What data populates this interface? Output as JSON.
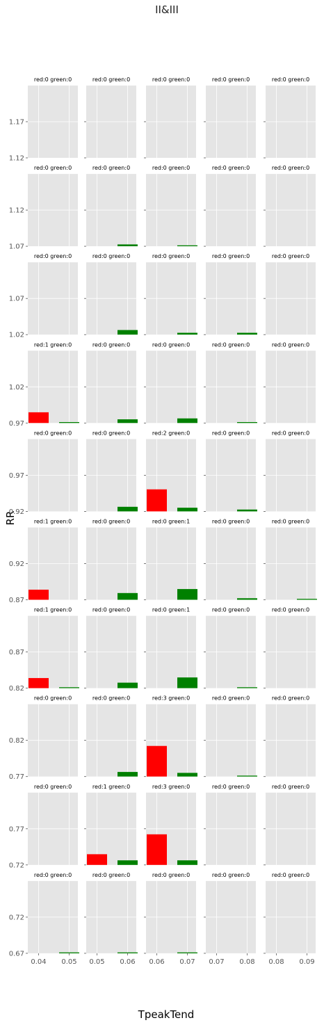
{
  "chart_data": {
    "type": "bar",
    "title": "II&III",
    "xlabel": "TpeakTend",
    "ylabel": "RR",
    "layout": {
      "rows": 10,
      "cols": 5
    },
    "colors": {
      "red": "#ff0000",
      "green": "#008000",
      "panel_bg": "#e5e5e5",
      "grid": "#ffffff"
    },
    "grid": true,
    "col_xticks": [
      [
        "0.04",
        "0.05"
      ],
      [
        "0.05",
        "0.06"
      ],
      [
        "0.06",
        "0.07"
      ],
      [
        "0.07",
        "0.08"
      ],
      [
        "0.08",
        "0.09"
      ]
    ],
    "row_yticks": [
      [
        "1.12",
        "1.17"
      ],
      [
        "1.07",
        "1.12"
      ],
      [
        "1.02",
        "1.07"
      ],
      [
        "0.97",
        "1.02"
      ],
      [
        "0.92",
        "0.97"
      ],
      [
        "0.87",
        "0.92"
      ],
      [
        "0.82",
        "0.87"
      ],
      [
        "0.77",
        "0.82"
      ],
      [
        "0.72",
        "0.77"
      ],
      [
        "0.67",
        "0.72"
      ]
    ],
    "panels": [
      [
        {
          "title": "red:0 green:0",
          "red": 0,
          "green": 0
        },
        {
          "title": "red:0 green:0",
          "red": 0,
          "green": 0
        },
        {
          "title": "red:0 green:0",
          "red": 0,
          "green": 0
        },
        {
          "title": "red:0 green:0",
          "red": 0,
          "green": 0
        },
        {
          "title": "red:0 green:0",
          "red": 0,
          "green": 0
        }
      ],
      [
        {
          "title": "red:0 green:0",
          "red": 0,
          "green": 0
        },
        {
          "title": "red:0 green:0",
          "red": 0,
          "green": 0.06
        },
        {
          "title": "red:0 green:0",
          "red": 0,
          "green": 0.03
        },
        {
          "title": "red:0 green:0",
          "red": 0,
          "green": 0
        },
        {
          "title": "red:0 green:0",
          "red": 0,
          "green": 0
        }
      ],
      [
        {
          "title": "red:0 green:0",
          "red": 0,
          "green": 0
        },
        {
          "title": "red:0 green:0",
          "red": 0,
          "green": 0.15
        },
        {
          "title": "red:0 green:0",
          "red": 0,
          "green": 0.06
        },
        {
          "title": "red:0 green:0",
          "red": 0,
          "green": 0.06
        },
        {
          "title": "red:0 green:0",
          "red": 0,
          "green": 0
        }
      ],
      [
        {
          "title": "red:1 green:0",
          "red": 0.35,
          "green": 0.03
        },
        {
          "title": "red:0 green:0",
          "red": 0,
          "green": 0.12
        },
        {
          "title": "red:0 green:0",
          "red": 0,
          "green": 0.15
        },
        {
          "title": "red:0 green:0",
          "red": 0,
          "green": 0.03
        },
        {
          "title": "red:0 green:0",
          "red": 0,
          "green": 0
        }
      ],
      [
        {
          "title": "red:0 green:0",
          "red": 0,
          "green": 0
        },
        {
          "title": "red:0 green:0",
          "red": 0,
          "green": 0.15
        },
        {
          "title": "red:2 green:0",
          "red": 0.72,
          "green": 0.12
        },
        {
          "title": "red:0 green:0",
          "red": 0,
          "green": 0.06
        },
        {
          "title": "red:0 green:0",
          "red": 0,
          "green": 0
        }
      ],
      [
        {
          "title": "red:1 green:0",
          "red": 0.33,
          "green": 0
        },
        {
          "title": "red:0 green:0",
          "red": 0,
          "green": 0.22
        },
        {
          "title": "red:0 green:1",
          "red": 0,
          "green": 0.35
        },
        {
          "title": "red:0 green:0",
          "red": 0,
          "green": 0.05
        },
        {
          "title": "red:0 green:0",
          "red": 0,
          "green": 0.03
        }
      ],
      [
        {
          "title": "red:1 green:0",
          "red": 0.33,
          "green": 0.03
        },
        {
          "title": "red:0 green:0",
          "red": 0,
          "green": 0.18
        },
        {
          "title": "red:0 green:1",
          "red": 0,
          "green": 0.35
        },
        {
          "title": "red:0 green:0",
          "red": 0,
          "green": 0.03
        },
        {
          "title": "red:0 green:0",
          "red": 0,
          "green": 0
        }
      ],
      [
        {
          "title": "red:0 green:0",
          "red": 0,
          "green": 0
        },
        {
          "title": "red:0 green:0",
          "red": 0,
          "green": 0.15
        },
        {
          "title": "red:3 green:0",
          "red": 1.0,
          "green": 0.12
        },
        {
          "title": "red:0 green:0",
          "red": 0,
          "green": 0.03
        },
        {
          "title": "red:0 green:0",
          "red": 0,
          "green": 0
        }
      ],
      [
        {
          "title": "red:0 green:0",
          "red": 0,
          "green": 0
        },
        {
          "title": "red:1 green:0",
          "red": 0.35,
          "green": 0.15
        },
        {
          "title": "red:3 green:0",
          "red": 1.0,
          "green": 0.15
        },
        {
          "title": "red:0 green:0",
          "red": 0,
          "green": 0
        },
        {
          "title": "red:0 green:0",
          "red": 0,
          "green": 0
        }
      ],
      [
        {
          "title": "red:0 green:0",
          "red": 0,
          "green": 0.03
        },
        {
          "title": "red:0 green:0",
          "red": 0,
          "green": 0.03
        },
        {
          "title": "red:0 green:0",
          "red": 0,
          "green": 0.03
        },
        {
          "title": "red:0 green:0",
          "red": 0,
          "green": 0
        },
        {
          "title": "red:0 green:0",
          "red": 0,
          "green": 0
        }
      ]
    ]
  }
}
